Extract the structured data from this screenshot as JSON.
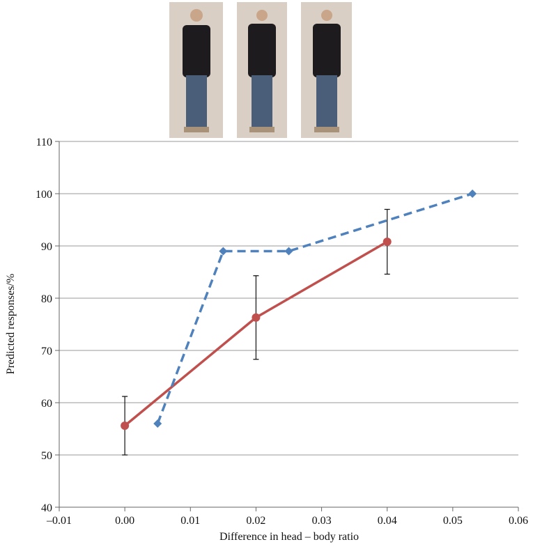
{
  "chart_data": {
    "type": "line",
    "x_label": "Difference in head – body ratio",
    "y_label": "Predicted responses/%",
    "xlim": [
      -0.01,
      0.06
    ],
    "xticks": [
      {
        "value": -0.01,
        "label": "–0.01"
      },
      {
        "value": 0,
        "label": "0.00"
      },
      0.01,
      0.02,
      0.03,
      0.04,
      0.05,
      0.06
    ],
    "ylim": [
      40,
      110
    ],
    "yticks": [
      40,
      50,
      60,
      70,
      80,
      90,
      100,
      110
    ],
    "grid": true,
    "series": [
      {
        "color": "#c0504d",
        "linestyle": "solid",
        "marker": "circle",
        "x": [
          0,
          0.02,
          0.04
        ],
        "values": [
          55.6,
          76.3,
          90.8
        ],
        "errors": [
          5.6,
          8,
          6.2
        ]
      },
      {
        "color": "#4f81bd",
        "linestyle": "dashed",
        "marker": "diamond",
        "x": [
          0.005,
          0.015,
          0.025,
          0.053
        ],
        "values": [
          56,
          89,
          89,
          100
        ]
      }
    ]
  }
}
